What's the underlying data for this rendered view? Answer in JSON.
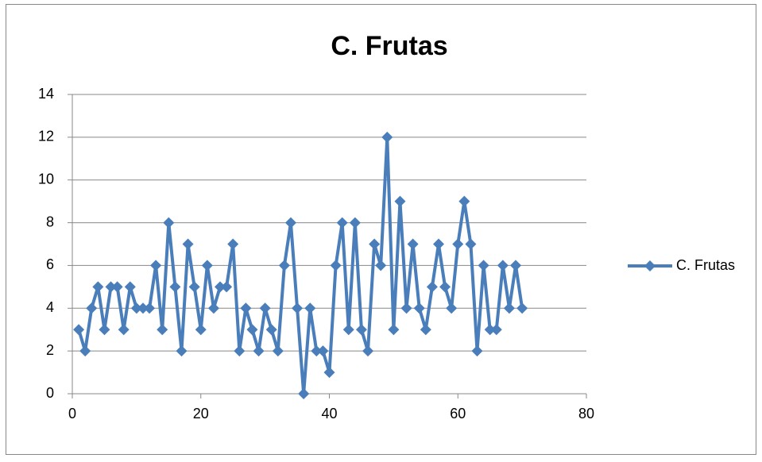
{
  "chart_data": {
    "type": "line",
    "title": "C. Frutas",
    "x": [
      1,
      2,
      3,
      4,
      5,
      6,
      7,
      8,
      9,
      10,
      11,
      12,
      13,
      14,
      15,
      16,
      17,
      18,
      19,
      20,
      21,
      22,
      23,
      24,
      25,
      26,
      27,
      28,
      29,
      30,
      31,
      32,
      33,
      34,
      35,
      36,
      37,
      38,
      39,
      40,
      41,
      42,
      43,
      44,
      45,
      46,
      47,
      48,
      49,
      50,
      51,
      52,
      53,
      54,
      55,
      56,
      57,
      58,
      59,
      60,
      61,
      62,
      63,
      64,
      65,
      66,
      67,
      68,
      69,
      70
    ],
    "series": [
      {
        "name": "C. Frutas",
        "color": "#4a7ebb",
        "values": [
          3,
          2,
          4,
          5,
          3,
          5,
          5,
          3,
          5,
          4,
          4,
          4,
          6,
          3,
          8,
          5,
          2,
          7,
          5,
          3,
          6,
          4,
          5,
          5,
          7,
          2,
          4,
          3,
          2,
          4,
          3,
          2,
          6,
          8,
          4,
          0,
          4,
          2,
          2,
          1,
          6,
          8,
          3,
          8,
          3,
          2,
          7,
          6,
          12,
          3,
          9,
          4,
          7,
          4,
          3,
          5,
          7,
          5,
          4,
          7,
          9,
          7,
          2,
          6,
          3,
          3,
          6,
          4,
          6,
          4
        ]
      }
    ],
    "xlim": [
      0,
      80
    ],
    "xticks": [
      0,
      20,
      40,
      60,
      80
    ],
    "ylim": [
      0,
      14
    ],
    "yticks": [
      0,
      2,
      4,
      6,
      8,
      10,
      12,
      14
    ],
    "grid": true,
    "legend": "right"
  }
}
